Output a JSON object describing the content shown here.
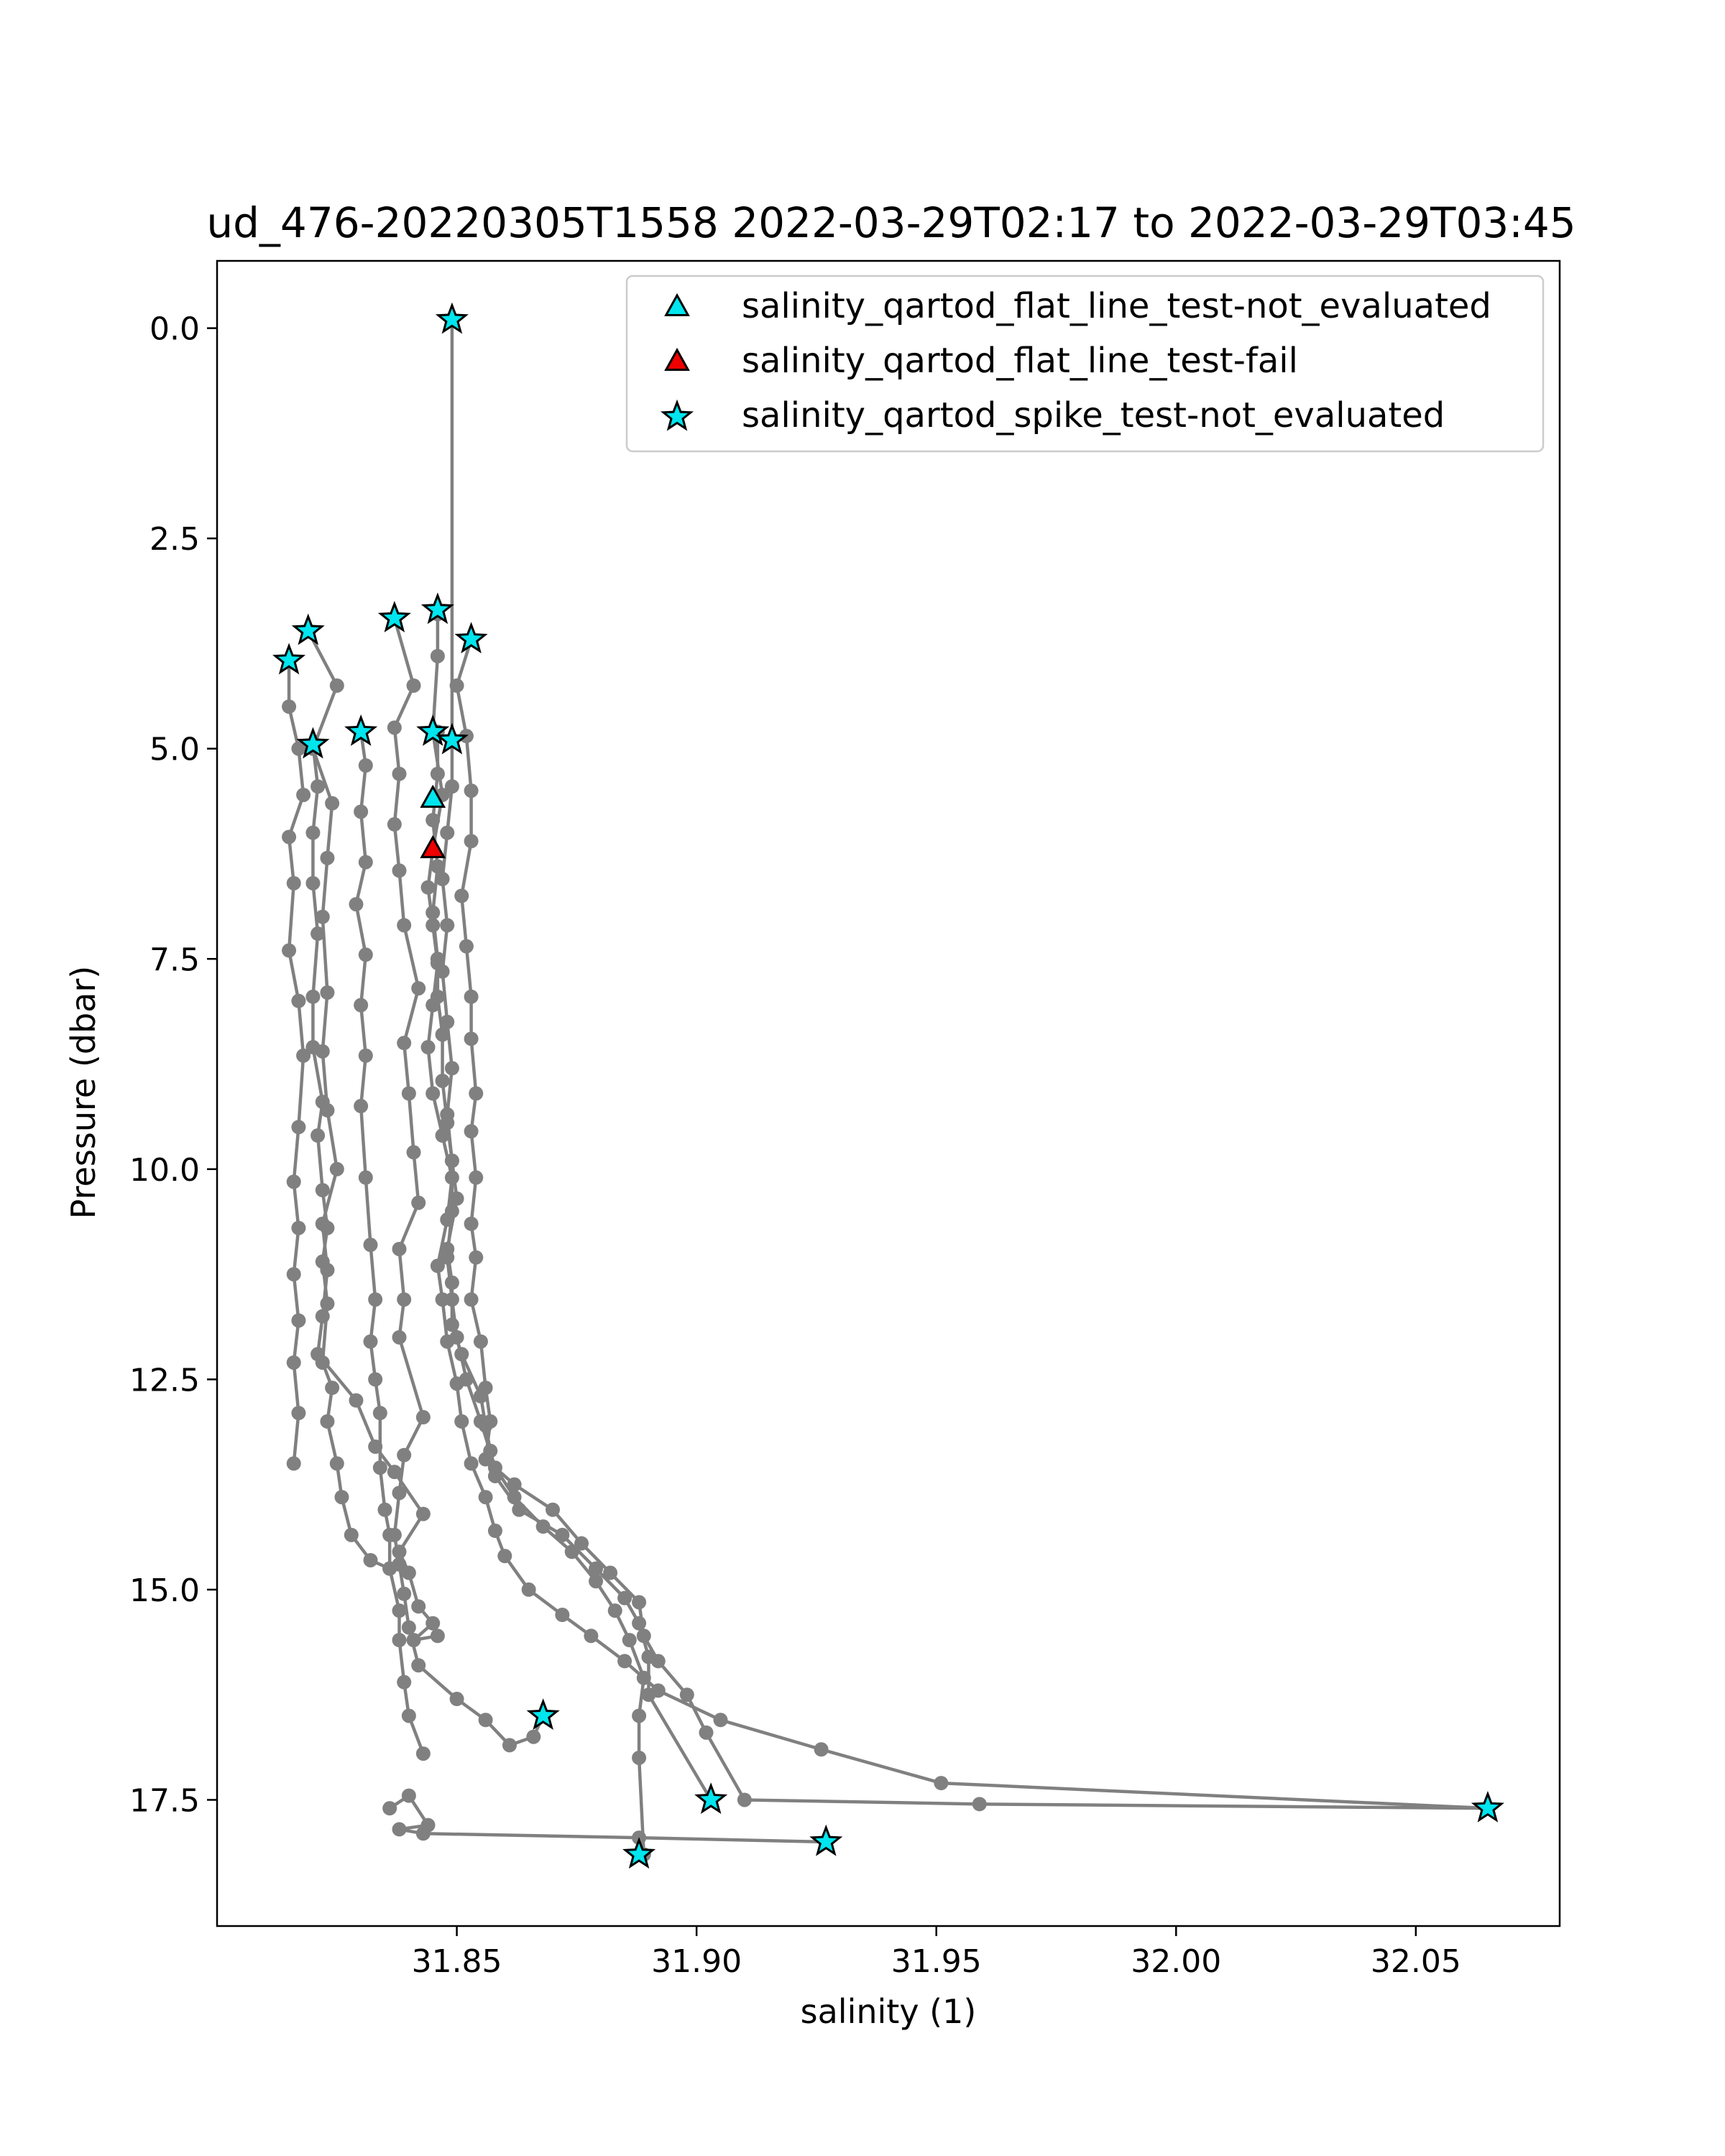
{
  "chart_data": {
    "type": "scatter",
    "title": "ud_476-20220305T1558 2022-03-29T02:17 to 2022-03-29T03:45",
    "xlabel": "salinity (1)",
    "ylabel": "Pressure (dbar)",
    "xlim": [
      31.8,
      32.08
    ],
    "ylim": [
      19.0,
      -0.8
    ],
    "y_inverted": true,
    "grid": false,
    "legend_position": "top-right",
    "x_ticks": [
      "31.85",
      "31.90",
      "31.95",
      "32.00",
      "32.05"
    ],
    "x_tick_values": [
      31.85,
      31.9,
      31.95,
      32.0,
      32.05
    ],
    "y_ticks": [
      "0.0",
      "2.5",
      "5.0",
      "7.5",
      "10.0",
      "12.5",
      "15.0",
      "17.5"
    ],
    "y_tick_values": [
      0.0,
      2.5,
      5.0,
      7.5,
      10.0,
      12.5,
      15.0,
      17.5
    ],
    "colors": {
      "profile_line": "#808080",
      "not_evaluated": "#00e5ee",
      "fail": "#ee0000",
      "marker_edge": "#000000",
      "axes": "#000000"
    },
    "profile_series": [
      {
        "x": [
          31.815,
          31.815,
          31.817,
          31.818,
          31.815,
          31.816,
          31.815,
          31.817,
          31.818,
          31.817,
          31.816,
          31.817,
          31.816,
          31.817,
          31.816,
          31.817,
          31.816
        ],
        "y": [
          3.95,
          4.5,
          5.0,
          5.55,
          6.05,
          6.6,
          7.4,
          8.0,
          8.65,
          9.5,
          10.15,
          10.7,
          11.25,
          11.8,
          12.3,
          12.9,
          13.5
        ]
      },
      {
        "x": [
          31.82,
          31.821,
          31.82,
          31.82,
          31.821,
          31.82,
          31.82,
          31.822,
          31.821,
          31.822,
          31.823,
          31.822,
          31.823,
          31.822,
          31.824,
          31.823,
          31.825,
          31.826,
          31.828,
          31.832,
          31.836
        ],
        "y": [
          4.95,
          5.45,
          6.0,
          6.6,
          7.2,
          7.95,
          8.55,
          9.2,
          9.6,
          10.25,
          10.7,
          11.1,
          11.6,
          12.3,
          12.6,
          13.0,
          13.5,
          13.9,
          14.35,
          14.65,
          14.75
        ]
      },
      {
        "x": [
          31.819,
          31.825,
          31.82,
          31.824,
          31.823,
          31.822,
          31.823,
          31.822,
          31.823,
          31.825,
          31.822,
          31.823,
          31.822,
          31.821,
          31.829,
          31.833,
          31.837,
          31.843,
          31.838,
          31.84,
          31.842,
          31.845,
          31.841,
          31.846
        ],
        "y": [
          3.6,
          4.25,
          5.0,
          5.65,
          6.3,
          7.0,
          7.9,
          8.6,
          9.3,
          10.0,
          10.65,
          11.2,
          11.75,
          12.2,
          12.75,
          13.3,
          13.6,
          14.1,
          14.55,
          14.8,
          15.2,
          15.4,
          15.6,
          15.55
        ]
      },
      {
        "x": [
          31.83,
          31.831,
          31.83,
          31.831,
          31.829,
          31.831,
          31.83,
          31.831,
          31.83,
          31.831,
          31.832,
          31.833,
          31.832,
          31.833,
          31.834,
          31.834,
          31.835,
          31.836,
          31.836,
          31.838,
          31.838,
          31.839,
          31.84,
          31.843
        ],
        "y": [
          4.8,
          5.2,
          5.75,
          6.35,
          6.85,
          7.45,
          8.05,
          8.65,
          9.25,
          10.1,
          10.9,
          11.55,
          12.05,
          12.5,
          12.9,
          13.55,
          14.05,
          14.35,
          14.75,
          15.25,
          15.6,
          16.1,
          16.5,
          16.95
        ]
      },
      {
        "x": [
          31.837,
          31.841,
          31.837,
          31.838,
          31.837,
          31.838,
          31.839,
          31.842,
          31.839,
          31.84,
          31.841,
          31.842,
          31.838,
          31.839,
          31.838,
          31.843,
          31.839,
          31.838,
          31.837,
          31.838,
          31.839,
          31.84,
          31.842,
          31.85,
          31.856,
          31.861,
          31.866,
          31.868
        ],
        "y": [
          3.45,
          4.25,
          4.75,
          5.3,
          5.9,
          6.45,
          7.1,
          7.85,
          8.5,
          9.1,
          9.8,
          10.4,
          10.95,
          11.55,
          12.0,
          12.95,
          13.4,
          13.85,
          14.35,
          14.7,
          15.05,
          15.45,
          15.9,
          16.3,
          16.55,
          16.85,
          16.75,
          16.5
        ]
      },
      {
        "x": [
          31.846,
          31.846,
          31.845,
          31.847,
          31.845,
          31.844,
          31.845,
          31.846,
          31.845,
          31.844,
          31.845,
          31.847,
          31.849,
          31.848,
          31.846,
          31.847,
          31.848,
          31.85,
          31.851,
          31.853,
          31.856,
          31.858,
          31.86,
          31.865,
          31.872,
          31.878,
          31.885,
          31.892,
          31.905,
          31.926,
          31.951,
          32.065
        ],
        "y": [
          3.4,
          3.9,
          4.8,
          5.55,
          6.2,
          6.65,
          7.1,
          7.55,
          8.05,
          8.55,
          9.1,
          9.6,
          10.1,
          10.6,
          11.15,
          11.55,
          12.05,
          12.55,
          13.0,
          13.5,
          13.9,
          14.3,
          14.6,
          15.0,
          15.3,
          15.55,
          15.85,
          16.2,
          16.55,
          16.9,
          17.3,
          17.6
        ]
      },
      {
        "x": [
          31.853,
          31.85,
          31.852,
          31.853,
          31.853,
          31.851,
          31.852,
          31.853,
          31.853,
          31.854,
          31.853,
          31.854,
          31.853,
          31.854,
          31.853,
          31.855,
          31.856,
          31.857,
          31.856,
          31.862,
          31.87,
          31.876,
          31.882,
          31.888,
          31.889,
          31.892,
          31.898,
          31.902,
          31.91,
          31.959,
          32.065
        ],
        "y": [
          3.7,
          4.25,
          4.85,
          5.5,
          6.1,
          6.75,
          7.35,
          7.95,
          8.45,
          9.1,
          9.55,
          10.1,
          10.65,
          11.05,
          11.55,
          12.05,
          12.6,
          13.0,
          13.45,
          13.75,
          14.05,
          14.45,
          14.8,
          15.15,
          15.55,
          15.85,
          16.25,
          16.7,
          17.5,
          17.55,
          17.6
        ]
      },
      {
        "x": [
          31.849,
          31.849,
          31.849,
          31.848,
          31.847,
          31.848,
          31.847,
          31.848,
          31.849,
          31.848,
          31.849,
          31.849,
          31.848,
          31.849,
          31.85,
          31.852,
          31.855,
          31.858,
          31.862,
          31.868,
          31.874,
          31.879,
          31.883,
          31.886,
          31.889,
          31.888,
          31.888,
          31.889
        ],
        "y": [
          -0.1,
          4.9,
          5.45,
          6.0,
          6.55,
          7.1,
          7.65,
          8.25,
          8.8,
          9.35,
          9.9,
          10.5,
          11.05,
          11.55,
          12.0,
          12.5,
          13.0,
          13.55,
          13.9,
          14.25,
          14.55,
          14.9,
          15.25,
          15.6,
          16.05,
          16.5,
          17.0,
          18.15
        ]
      },
      {
        "x": [
          31.846,
          31.846,
          31.845,
          31.846,
          31.845,
          31.846,
          31.846,
          31.847,
          31.847,
          31.848,
          31.849,
          31.85,
          31.848,
          31.849,
          31.849,
          31.851,
          31.855,
          31.856,
          31.857,
          31.858,
          31.863,
          31.872,
          31.879,
          31.885,
          31.888,
          31.89,
          31.89,
          31.903
        ],
        "y": [
          4.8,
          5.3,
          5.85,
          6.4,
          6.95,
          7.5,
          7.95,
          8.4,
          8.95,
          9.45,
          9.9,
          10.35,
          10.95,
          11.35,
          11.85,
          12.2,
          12.7,
          13.05,
          13.35,
          13.65,
          14.05,
          14.35,
          14.75,
          15.1,
          15.4,
          15.8,
          16.25,
          17.5
        ]
      },
      {
        "x": [
          31.836,
          31.84,
          31.844,
          31.838,
          31.843,
          31.888,
          31.927
        ],
        "y": [
          17.6,
          17.45,
          17.8,
          17.85,
          17.9,
          17.95,
          18.0
        ]
      }
    ],
    "flag_series": [
      {
        "name": "salinity_qartod_flat_line_test-not_evaluated",
        "marker": "triangle",
        "color": "#00e5ee",
        "x": [
          31.845
        ],
        "y": [
          5.6
        ]
      },
      {
        "name": "salinity_qartod_flat_line_test-fail",
        "marker": "triangle",
        "color": "#ee0000",
        "x": [
          31.845
        ],
        "y": [
          6.2
        ]
      },
      {
        "name": "salinity_qartod_spike_test-not_evaluated",
        "marker": "star",
        "color": "#00e5ee",
        "x": [
          31.849,
          31.846,
          31.837,
          31.819,
          31.815,
          31.853,
          31.82,
          31.83,
          31.845,
          31.849,
          31.868,
          31.903,
          31.888,
          31.927,
          32.065
        ],
        "y": [
          -0.1,
          3.35,
          3.45,
          3.6,
          3.95,
          3.7,
          4.95,
          4.8,
          4.8,
          4.9,
          16.5,
          17.5,
          18.15,
          18.0,
          17.6
        ]
      }
    ]
  }
}
